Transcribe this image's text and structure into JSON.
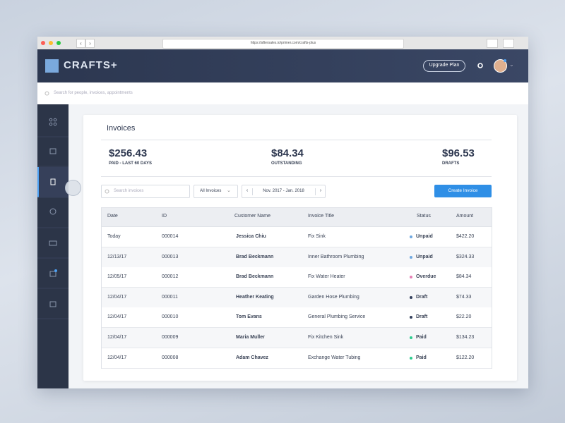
{
  "browser": {
    "url": "https://aftersales.io/primer.com/crafts-plus"
  },
  "header": {
    "logo": "CRAFTS+",
    "upgrade_button": "Upgrade Plan"
  },
  "search": {
    "placeholder": "Search for people, invoices, appointments"
  },
  "page": {
    "title": "Invoices",
    "stats": [
      {
        "value": "$256.43",
        "label": "PAID - LAST 60 DAYS"
      },
      {
        "value": "$84.34",
        "label": "OUTSTANDING"
      },
      {
        "value": "$96.53",
        "label": "DRAFTS"
      }
    ],
    "filters": {
      "search_placeholder": "Search invoices",
      "dropdown": "All Invoices",
      "date_range": "Nov. 2017 - Jan. 2018",
      "create_button": "Create Invoice"
    },
    "table": {
      "columns": [
        "Date",
        "ID",
        "Customer Name",
        "Invoice Title",
        "Status",
        "Amount"
      ],
      "rows": [
        {
          "date": "Today",
          "id": "000014",
          "customer": "Jessica Chiu",
          "title": "Fix Sink",
          "status": "Unpaid",
          "status_color": "#6fa8e0",
          "amount": "$422.20"
        },
        {
          "date": "12/13/17",
          "id": "000013",
          "customer": "Brad Beckmann",
          "title": "Inner Bathroom Plumbing",
          "status": "Unpaid",
          "status_color": "#6fa8e0",
          "amount": "$324.33"
        },
        {
          "date": "12/05/17",
          "id": "000012",
          "customer": "Brad Beckmann",
          "title": "Fix Water Heater",
          "status": "Overdue",
          "status_color": "#e57fb4",
          "amount": "$84.34"
        },
        {
          "date": "12/04/17",
          "id": "000011",
          "customer": "Heather Keating",
          "title": "Garden Hose Plumbing",
          "status": "Draft",
          "status_color": "#34405c",
          "amount": "$74.33"
        },
        {
          "date": "12/04/17",
          "id": "000010",
          "customer": "Tom Evans",
          "title": "General Plumbing Service",
          "status": "Draft",
          "status_color": "#34405c",
          "amount": "$22.20"
        },
        {
          "date": "12/04/17",
          "id": "000009",
          "customer": "Maria Muller",
          "title": "Fix Kitchen Sink",
          "status": "Paid",
          "status_color": "#2ecc8f",
          "amount": "$134.23"
        },
        {
          "date": "12/04/17",
          "id": "000008",
          "customer": "Adam Chavez",
          "title": "Exchange Water Tubing",
          "status": "Paid",
          "status_color": "#2ecc8f",
          "amount": "$122.20"
        }
      ]
    }
  }
}
